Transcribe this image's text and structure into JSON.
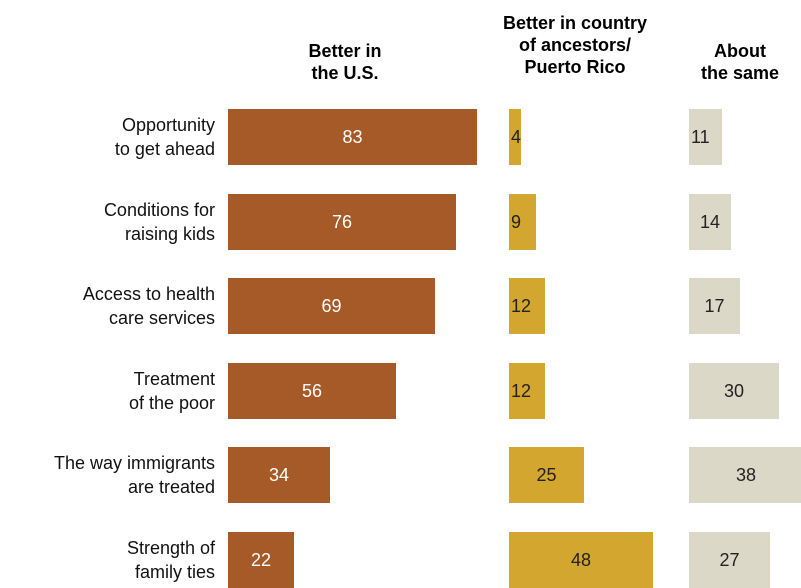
{
  "chart_data": {
    "type": "bar",
    "categories": [
      "Opportunity\nto get ahead",
      "Conditions for\nraising kids",
      "Access to health\ncare services",
      "Treatment\nof the poor",
      "The way immigrants\nare treated",
      "Strength of\nfamily ties"
    ],
    "series": [
      {
        "name": "Better in\nthe U.S.",
        "values": [
          83,
          76,
          69,
          56,
          34,
          22
        ],
        "color": "#a65a28"
      },
      {
        "name": "Better in country\nof ancestors/\nPuerto Rico",
        "values": [
          4,
          9,
          12,
          12,
          25,
          48
        ],
        "color": "#d2a62f"
      },
      {
        "name": "About\nthe same",
        "values": [
          11,
          14,
          17,
          30,
          38,
          27
        ],
        "color": "#dcd8c7"
      }
    ],
    "xlim": [
      0,
      100
    ]
  }
}
